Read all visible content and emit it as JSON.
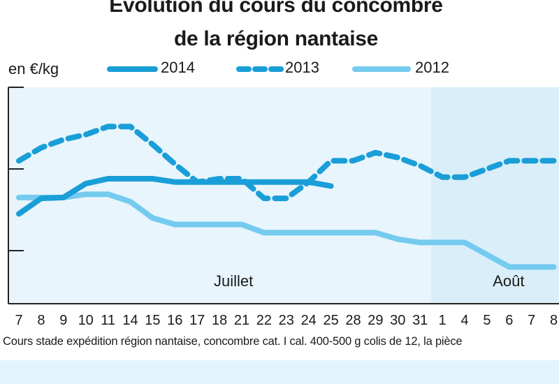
{
  "chart_data": {
    "type": "line",
    "title_line1": "Évolution du cours du concombre",
    "title_line2": "de la région nantaise",
    "ylabel": "en €/kg",
    "months": [
      {
        "label": "Juillet"
      },
      {
        "label": "Août"
      }
    ],
    "categories": [
      "7",
      "8",
      "9",
      "10",
      "11",
      "14",
      "15",
      "16",
      "17",
      "18",
      "21",
      "22",
      "23",
      "24",
      "25",
      "28",
      "29",
      "30",
      "31",
      "1",
      "4",
      "5",
      "6",
      "7",
      "8"
    ],
    "series": [
      {
        "name": "2014",
        "style": "solid",
        "color": "#1a9ed8",
        "values": [
          0.45,
          0.64,
          0.65,
          0.82,
          0.88,
          0.88,
          0.88,
          0.84,
          0.84,
          0.84,
          0.84,
          0.84,
          0.84,
          0.84,
          0.79,
          null,
          null,
          null,
          null,
          null,
          null,
          null,
          null,
          null,
          null
        ]
      },
      {
        "name": "2013",
        "style": "dashed",
        "color": "#1a9ed8",
        "values": [
          1.1,
          1.26,
          1.36,
          1.42,
          1.52,
          1.52,
          1.3,
          1.06,
          0.84,
          0.88,
          0.88,
          0.64,
          0.64,
          0.84,
          1.1,
          1.1,
          1.2,
          1.14,
          1.04,
          0.9,
          0.9,
          1.0,
          1.1,
          1.1,
          1.1
        ]
      },
      {
        "name": "2012",
        "style": "solid",
        "color": "#74cbef",
        "values": [
          0.65,
          0.65,
          0.65,
          0.69,
          0.69,
          0.6,
          0.4,
          0.32,
          0.32,
          0.32,
          0.32,
          0.22,
          0.22,
          0.22,
          0.22,
          0.22,
          0.22,
          0.14,
          0.1,
          0.1,
          0.1,
          -0.05,
          -0.2,
          -0.2,
          -0.2
        ]
      }
    ],
    "ylim": [
      -0.65,
      2.0
    ],
    "yticks": [
      0,
      1,
      2
    ],
    "grid": false,
    "legend": "top"
  },
  "caption": "Cours stade expédition région nantaise, concombre cat. I cal. 400-500 g colis de 12, la pièce",
  "colors": {
    "plot_bg": "#e8f5fc",
    "aout_bg": "#d9eef9",
    "axis": "#222222"
  }
}
